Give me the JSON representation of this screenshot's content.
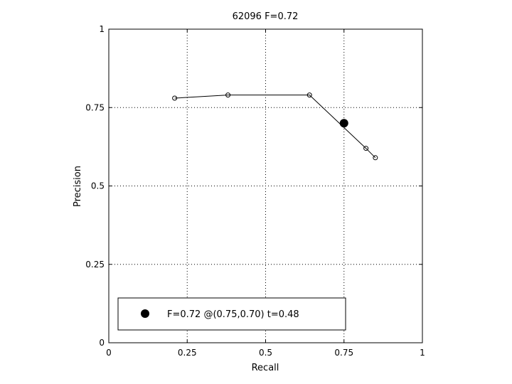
{
  "chart_data": {
    "type": "line",
    "title": "62096 F=0.72",
    "xlabel": "Recall",
    "ylabel": "Precision",
    "xlim": [
      0,
      1
    ],
    "ylim": [
      0,
      1
    ],
    "xticks": [
      0,
      0.25,
      0.5,
      0.75,
      1
    ],
    "xtick_labels": [
      "0",
      "0.25",
      "0.5",
      "0.75",
      "1"
    ],
    "yticks": [
      0,
      0.25,
      0.5,
      0.75,
      1
    ],
    "ytick_labels": [
      "0",
      "0.25",
      "0.5",
      "0.75",
      "1"
    ],
    "grid": true,
    "series": [
      {
        "x": [
          0.21,
          0.38,
          0.64,
          0.82,
          0.85
        ],
        "y": [
          0.78,
          0.79,
          0.79,
          0.62,
          0.59
        ]
      }
    ],
    "highlight": {
      "x": 0.75,
      "y": 0.7
    },
    "legend": {
      "position": "bottom-left",
      "label": "F=0.72 @(0.75,0.70) t=0.48"
    }
  }
}
